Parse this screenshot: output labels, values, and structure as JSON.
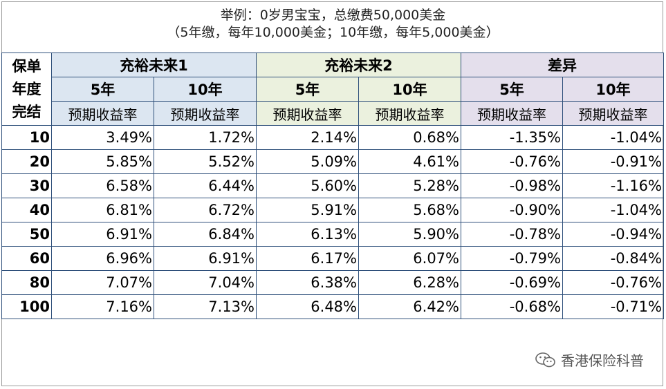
{
  "title": {
    "line1": "举例：0岁男宝宝，总缴费50,000美金",
    "line2": "（5年缴，每年10,000美金；10年缴，每年5,000美金）"
  },
  "table": {
    "corner_lines": [
      "保单",
      "年度",
      "完结"
    ],
    "groups": [
      "充裕未来1",
      "充裕未来2",
      "差异"
    ],
    "years": [
      "5年",
      "10年",
      "5年",
      "10年",
      "5年",
      "10年"
    ],
    "metric_labels": [
      "预期收益率",
      "预期收益率",
      "预期收益率",
      "预期收益率",
      "预期收益率",
      "预期收益率"
    ],
    "rows": [
      {
        "year": "10",
        "values": [
          "3.49%",
          "1.72%",
          "2.14%",
          "0.68%",
          "-1.35%",
          "-1.04%"
        ]
      },
      {
        "year": "20",
        "values": [
          "5.85%",
          "5.52%",
          "5.09%",
          "4.61%",
          "-0.76%",
          "-0.91%"
        ]
      },
      {
        "year": "30",
        "values": [
          "6.58%",
          "6.44%",
          "5.60%",
          "5.28%",
          "-0.98%",
          "-1.16%"
        ]
      },
      {
        "year": "40",
        "values": [
          "6.81%",
          "6.72%",
          "5.91%",
          "5.68%",
          "-0.90%",
          "-1.04%"
        ]
      },
      {
        "year": "50",
        "values": [
          "6.91%",
          "6.84%",
          "6.13%",
          "5.90%",
          "-0.78%",
          "-0.94%"
        ]
      },
      {
        "year": "60",
        "values": [
          "6.96%",
          "6.91%",
          "6.17%",
          "6.07%",
          "-0.79%",
          "-0.84%"
        ]
      },
      {
        "year": "80",
        "values": [
          "7.07%",
          "7.04%",
          "6.38%",
          "6.28%",
          "-0.69%",
          "-0.76%"
        ]
      },
      {
        "year": "100",
        "values": [
          "7.16%",
          "7.13%",
          "6.48%",
          "6.42%",
          "-0.68%",
          "-0.71%"
        ]
      }
    ]
  },
  "watermark": {
    "text": "香港保险科普",
    "icon": "wechat-icon"
  },
  "colors": {
    "group1_bg": "#dce6f1",
    "group2_bg": "#ebf1de",
    "group3_bg": "#e4dfec",
    "grid": "#2e4f7a"
  }
}
